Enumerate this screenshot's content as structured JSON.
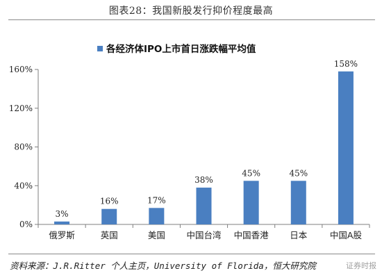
{
  "figure_title": "图表28：我国新股发行抑价程度最高",
  "source": "资料来源：J.R.Ritter 个人主页，University of Florida，恒大研究院",
  "watermark": "证券时报",
  "colors": {
    "bar": "#4a7fc1",
    "axis": "#7f7f7f",
    "grid": "#d9d9d9"
  },
  "chart_data": {
    "type": "bar",
    "title": "",
    "legend": {
      "label": "各经济体IPO上市首日涨跌幅平均值",
      "position": "top"
    },
    "categories": [
      "俄罗斯",
      "英国",
      "美国",
      "中国台湾",
      "中国香港",
      "日本",
      "中国A股"
    ],
    "values": [
      3,
      16,
      17,
      38,
      45,
      45,
      158
    ],
    "data_labels": [
      "3%",
      "16%",
      "17%",
      "38%",
      "45%",
      "45%",
      "158%"
    ],
    "yticks": [
      "0%",
      "40%",
      "80%",
      "120%",
      "160%"
    ],
    "ytick_values": [
      0,
      40,
      80,
      120,
      160
    ],
    "ylim": [
      0,
      160
    ],
    "xlabel": "",
    "ylabel": "",
    "grid": false
  }
}
